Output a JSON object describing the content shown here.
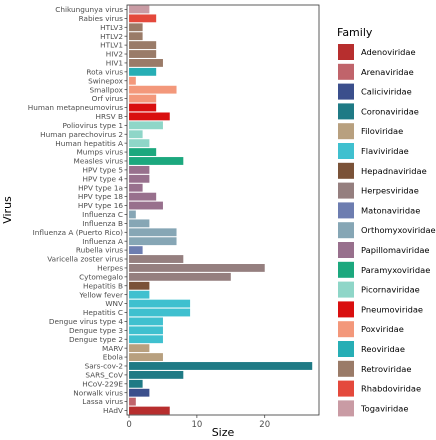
{
  "chart_data": {
    "type": "bar",
    "orientation": "horizontal",
    "xlabel": "Size",
    "ylabel": "Virus",
    "xlim": [
      -0.3,
      28
    ],
    "x_ticks": [
      0,
      10,
      20
    ],
    "grid": false,
    "legend_title": "Family",
    "legend_position": "right",
    "families": [
      {
        "name": "Adenoviridae",
        "color": "#b72e2e"
      },
      {
        "name": "Arenaviridae",
        "color": "#c0646b"
      },
      {
        "name": "Caliciviridae",
        "color": "#3b4f8c"
      },
      {
        "name": "Coronaviridae",
        "color": "#1f7a85"
      },
      {
        "name": "Filoviridae",
        "color": "#b8a07f"
      },
      {
        "name": "Flaviviridae",
        "color": "#3fc0cf"
      },
      {
        "name": "Hepadnaviridae",
        "color": "#7a5238"
      },
      {
        "name": "Herpesviridae",
        "color": "#957f7f"
      },
      {
        "name": "Matonaviridae",
        "color": "#6d7db0"
      },
      {
        "name": "Orthomyxoviridae",
        "color": "#86a6b5"
      },
      {
        "name": "Papillomaviridae",
        "color": "#98708d"
      },
      {
        "name": "Paramyxoviridae",
        "color": "#1ca87e"
      },
      {
        "name": "Picornaviridae",
        "color": "#8fd6c8"
      },
      {
        "name": "Pneumoviridae",
        "color": "#d90f0f"
      },
      {
        "name": "Poxviridae",
        "color": "#f3987b"
      },
      {
        "name": "Reoviridae",
        "color": "#27aeb5"
      },
      {
        "name": "Retroviridae",
        "color": "#9a7b68"
      },
      {
        "name": "Rhabdoviridae",
        "color": "#e4493c"
      },
      {
        "name": "Togaviridae",
        "color": "#c99ba4"
      }
    ],
    "bars": [
      {
        "virus": "Chikungunya virus",
        "size": 3,
        "family": "Togaviridae"
      },
      {
        "virus": "Rabies virus",
        "size": 4,
        "family": "Rhabdoviridae"
      },
      {
        "virus": "HTLV3",
        "size": 2,
        "family": "Retroviridae"
      },
      {
        "virus": "HTLV2",
        "size": 2,
        "family": "Retroviridae"
      },
      {
        "virus": "HTLV1",
        "size": 4,
        "family": "Retroviridae"
      },
      {
        "virus": "HIV2",
        "size": 4,
        "family": "Retroviridae"
      },
      {
        "virus": "HIV1",
        "size": 5,
        "family": "Retroviridae"
      },
      {
        "virus": "Rota virus",
        "size": 4,
        "family": "Reoviridae"
      },
      {
        "virus": "Swinepox",
        "size": 1,
        "family": "Poxviridae"
      },
      {
        "virus": "Smallpox",
        "size": 7,
        "family": "Poxviridae"
      },
      {
        "virus": "Orf virus",
        "size": 4,
        "family": "Poxviridae"
      },
      {
        "virus": "Human metapneumovirus",
        "size": 4,
        "family": "Pneumoviridae"
      },
      {
        "virus": "HRSV B",
        "size": 6,
        "family": "Pneumoviridae"
      },
      {
        "virus": "Poliovirus type 1",
        "size": 5,
        "family": "Picornaviridae"
      },
      {
        "virus": "Human parechovirus 2",
        "size": 2,
        "family": "Picornaviridae"
      },
      {
        "virus": "Human hepatitis A",
        "size": 3,
        "family": "Picornaviridae"
      },
      {
        "virus": "Mumps virus",
        "size": 4,
        "family": "Paramyxoviridae"
      },
      {
        "virus": "Measles virus",
        "size": 8,
        "family": "Paramyxoviridae"
      },
      {
        "virus": "HPV type 5",
        "size": 3,
        "family": "Papillomaviridae"
      },
      {
        "virus": "HPV type 4",
        "size": 3,
        "family": "Papillomaviridae"
      },
      {
        "virus": "HPV type 1a",
        "size": 2,
        "family": "Papillomaviridae"
      },
      {
        "virus": "HPV type 18",
        "size": 4,
        "family": "Papillomaviridae"
      },
      {
        "virus": "HPV type 16",
        "size": 5,
        "family": "Papillomaviridae"
      },
      {
        "virus": "Influenza C",
        "size": 1,
        "family": "Orthomyxoviridae"
      },
      {
        "virus": "Influenza B",
        "size": 3,
        "family": "Orthomyxoviridae"
      },
      {
        "virus": "Influenza A (Puerto Rico)",
        "size": 7,
        "family": "Orthomyxoviridae"
      },
      {
        "virus": "Influenza A",
        "size": 7,
        "family": "Orthomyxoviridae"
      },
      {
        "virus": "Rubella virus",
        "size": 2,
        "family": "Matonaviridae"
      },
      {
        "virus": "Varicella zoster virus",
        "size": 8,
        "family": "Herpesviridae"
      },
      {
        "virus": "Herpes",
        "size": 20,
        "family": "Herpesviridae"
      },
      {
        "virus": "Cytomegalo",
        "size": 15,
        "family": "Herpesviridae"
      },
      {
        "virus": "Hepatitis B",
        "size": 3,
        "family": "Hepadnaviridae"
      },
      {
        "virus": "Yellow fever",
        "size": 3,
        "family": "Flaviviridae"
      },
      {
        "virus": "WNV",
        "size": 9,
        "family": "Flaviviridae"
      },
      {
        "virus": "Hepatitis C",
        "size": 9,
        "family": "Flaviviridae"
      },
      {
        "virus": "Dengue virus type 4",
        "size": 5,
        "family": "Flaviviridae"
      },
      {
        "virus": "Dengue type 3",
        "size": 5,
        "family": "Flaviviridae"
      },
      {
        "virus": "Dengue type 2",
        "size": 5,
        "family": "Flaviviridae"
      },
      {
        "virus": "MARV",
        "size": 3,
        "family": "Filoviridae"
      },
      {
        "virus": "Ebola",
        "size": 5,
        "family": "Filoviridae"
      },
      {
        "virus": "Sars-cov-2",
        "size": 27,
        "family": "Coronaviridae"
      },
      {
        "virus": "SARS_CoV",
        "size": 8,
        "family": "Coronaviridae"
      },
      {
        "virus": "HCoV-229E",
        "size": 2,
        "family": "Coronaviridae"
      },
      {
        "virus": "Norwalk virus",
        "size": 3,
        "family": "Caliciviridae"
      },
      {
        "virus": "Lassa virus",
        "size": 1,
        "family": "Arenaviridae"
      },
      {
        "virus": "HAdV",
        "size": 6,
        "family": "Adenoviridae"
      }
    ]
  }
}
